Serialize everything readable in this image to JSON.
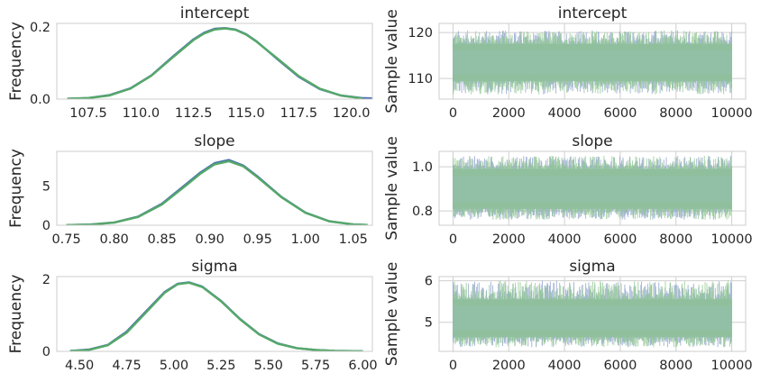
{
  "colors": {
    "chain1": "#4C72B0",
    "chain2": "#55A868",
    "trace_fill": "#8fbfa8",
    "trace_chain1": "#8b9fcc",
    "trace_chain2": "#8fc78f",
    "axes_frame": "#cccccc",
    "grid": "#cfcfcf"
  },
  "chart_data": [
    {
      "type": "line",
      "title": "intercept",
      "ylabel": "Frequency",
      "xlim": [
        106.0,
        121.0
      ],
      "ylim": [
        0,
        0.21
      ],
      "xticks": [
        107.5,
        110.0,
        112.5,
        115.0,
        117.5,
        120.0
      ],
      "xtick_labels": [
        "107.5",
        "110.0",
        "112.5",
        "115.0",
        "117.5",
        "120.0"
      ],
      "yticks": [
        0,
        0.2
      ],
      "ytick_labels": [
        "0.0",
        "0.2"
      ],
      "grid": false,
      "series": [
        {
          "x": [
            106.5,
            107.5,
            108.5,
            109.5,
            110.5,
            111.5,
            112.5,
            113.0,
            113.5,
            114.0,
            114.5,
            115.0,
            115.5,
            116.5,
            117.5,
            118.5,
            119.5,
            120.5,
            121.0
          ],
          "values": [
            0.001,
            0.003,
            0.011,
            0.03,
            0.066,
            0.117,
            0.166,
            0.184,
            0.195,
            0.197,
            0.193,
            0.18,
            0.16,
            0.11,
            0.062,
            0.028,
            0.01,
            0.003,
            0.002
          ]
        },
        {
          "x": [
            106.5,
            107.5,
            108.5,
            109.5,
            110.5,
            111.5,
            112.5,
            113.0,
            113.5,
            114.0,
            114.5,
            115.0,
            115.5,
            116.5,
            117.5,
            118.5,
            119.5,
            120.5
          ],
          "values": [
            0.001,
            0.003,
            0.01,
            0.029,
            0.065,
            0.115,
            0.164,
            0.182,
            0.193,
            0.196,
            0.192,
            0.179,
            0.159,
            0.112,
            0.064,
            0.029,
            0.01,
            0.002
          ]
        }
      ]
    },
    {
      "type": "line",
      "title": "intercept",
      "ylabel": "Sample value",
      "xlim": [
        -500,
        10500
      ],
      "ylim": [
        105.5,
        122
      ],
      "xticks": [
        0,
        2000,
        4000,
        6000,
        8000,
        10000
      ],
      "xtick_labels": [
        "0",
        "2000",
        "4000",
        "6000",
        "8000",
        "10000"
      ],
      "yticks": [
        110,
        120
      ],
      "ytick_labels": [
        "110",
        "120"
      ],
      "grid": true,
      "n_samples": 10000,
      "band": {
        "low": 109.5,
        "high": 117.5
      },
      "extremes": {
        "low": 106.5,
        "high": 120.5
      }
    },
    {
      "type": "line",
      "title": "slope",
      "ylabel": "Frequency",
      "xlim": [
        0.74,
        1.07
      ],
      "ylim": [
        0,
        9.4
      ],
      "xticks": [
        0.75,
        0.8,
        0.85,
        0.9,
        0.95,
        1.0,
        1.05
      ],
      "xtick_labels": [
        "0.75",
        "0.80",
        "0.85",
        "0.90",
        "0.95",
        "1.00",
        "1.05"
      ],
      "yticks": [
        0,
        5
      ],
      "ytick_labels": [
        "0",
        "5"
      ],
      "grid": false,
      "series": [
        {
          "x": [
            0.75,
            0.775,
            0.8,
            0.825,
            0.85,
            0.875,
            0.89,
            0.905,
            0.92,
            0.935,
            0.95,
            0.975,
            1.0,
            1.025,
            1.05,
            1.065
          ],
          "values": [
            0.02,
            0.09,
            0.35,
            1.1,
            2.75,
            5.2,
            6.7,
            7.9,
            8.3,
            7.6,
            6.2,
            3.6,
            1.6,
            0.5,
            0.1,
            0.03
          ]
        },
        {
          "x": [
            0.75,
            0.775,
            0.8,
            0.825,
            0.85,
            0.875,
            0.89,
            0.905,
            0.92,
            0.935,
            0.95,
            0.975,
            1.0,
            1.025,
            1.05,
            1.065
          ],
          "values": [
            0.02,
            0.08,
            0.33,
            1.05,
            2.65,
            5.05,
            6.55,
            7.75,
            8.15,
            7.5,
            6.1,
            3.55,
            1.58,
            0.49,
            0.1,
            0.03
          ]
        }
      ]
    },
    {
      "type": "line",
      "title": "slope",
      "ylabel": "Sample value",
      "xlim": [
        -500,
        10500
      ],
      "ylim": [
        0.735,
        1.07
      ],
      "xticks": [
        0,
        2000,
        4000,
        6000,
        8000,
        10000
      ],
      "xtick_labels": [
        "0",
        "2000",
        "4000",
        "6000",
        "8000",
        "10000"
      ],
      "yticks": [
        0.8,
        1.0
      ],
      "ytick_labels": [
        "0.8",
        "1.0"
      ],
      "grid": true,
      "n_samples": 10000,
      "band": {
        "low": 0.81,
        "high": 0.99
      },
      "extremes": {
        "low": 0.76,
        "high": 1.05
      }
    },
    {
      "type": "line",
      "title": "sigma",
      "ylabel": "Frequency",
      "xlim": [
        4.38,
        6.05
      ],
      "ylim": [
        0,
        2.08
      ],
      "xticks": [
        4.5,
        4.75,
        5.0,
        5.25,
        5.5,
        5.75,
        6.0
      ],
      "xtick_labels": [
        "4.50",
        "4.75",
        "5.00",
        "5.25",
        "5.50",
        "5.75",
        "6.00"
      ],
      "yticks": [
        0,
        2
      ],
      "ytick_labels": [
        "0",
        "2"
      ],
      "grid": false,
      "series": [
        {
          "x": [
            4.45,
            4.55,
            4.65,
            4.75,
            4.85,
            4.95,
            5.02,
            5.08,
            5.15,
            5.25,
            5.35,
            5.45,
            5.55,
            5.65,
            5.75,
            5.85,
            6.0
          ],
          "values": [
            0.01,
            0.05,
            0.18,
            0.55,
            1.1,
            1.65,
            1.88,
            1.92,
            1.8,
            1.4,
            0.9,
            0.48,
            0.22,
            0.09,
            0.04,
            0.015,
            0.005
          ]
        },
        {
          "x": [
            4.45,
            4.55,
            4.65,
            4.75,
            4.85,
            4.95,
            5.02,
            5.08,
            5.15,
            5.25,
            5.35,
            5.45,
            5.55,
            5.65,
            5.75,
            5.85,
            6.0
          ],
          "values": [
            0.01,
            0.04,
            0.17,
            0.52,
            1.07,
            1.63,
            1.87,
            1.91,
            1.79,
            1.39,
            0.89,
            0.47,
            0.21,
            0.09,
            0.04,
            0.015,
            0.005
          ]
        }
      ]
    },
    {
      "type": "line",
      "title": "sigma",
      "ylabel": "Sample value",
      "xlim": [
        -500,
        10500
      ],
      "ylim": [
        4.3,
        6.1
      ],
      "xticks": [
        0,
        2000,
        4000,
        6000,
        8000,
        10000
      ],
      "xtick_labels": [
        "0",
        "2000",
        "4000",
        "6000",
        "8000",
        "10000"
      ],
      "yticks": [
        5,
        6
      ],
      "ytick_labels": [
        "5",
        "6"
      ],
      "grid": true,
      "n_samples": 10000,
      "band": {
        "low": 4.65,
        "high": 5.55
      },
      "extremes": {
        "low": 4.4,
        "high": 6.0
      }
    }
  ]
}
